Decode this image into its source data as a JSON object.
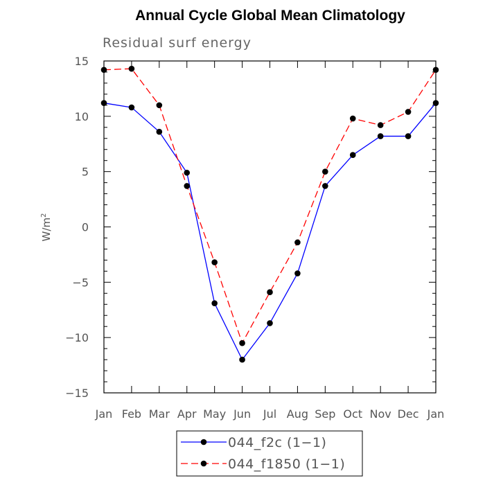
{
  "chart_data": {
    "type": "line",
    "title": "Annual Cycle Global Mean Climatology",
    "subtitle": "Residual surf energy",
    "ylabel_base": "W/m",
    "ylabel_sup": "2",
    "xlabel": "",
    "ylim": [
      -15,
      15
    ],
    "yticks": [
      15,
      10,
      5,
      0,
      -5,
      -10,
      -15
    ],
    "ytick_labels": [
      "15",
      "10",
      "5",
      "0",
      "−5",
      "−10",
      "−15"
    ],
    "categories": [
      "Jan",
      "Feb",
      "Mar",
      "Apr",
      "May",
      "Jun",
      "Jul",
      "Aug",
      "Sep",
      "Oct",
      "Nov",
      "Dec",
      "Jan"
    ],
    "series": [
      {
        "name": "044_f2c (1−1)",
        "color": "#0000ff",
        "dash": "solid",
        "values": [
          11.2,
          10.8,
          8.6,
          4.9,
          -6.9,
          -12.0,
          -8.7,
          -4.2,
          3.7,
          6.5,
          8.2,
          8.2,
          11.2
        ]
      },
      {
        "name": "044_f1850 (1−1)",
        "color": "#ff0000",
        "dash": "dashed",
        "values": [
          14.2,
          14.3,
          11.0,
          3.7,
          -3.2,
          -10.5,
          -5.9,
          -1.4,
          5.0,
          9.8,
          9.2,
          10.4,
          14.2
        ]
      }
    ],
    "legend_position": "bottom-center"
  }
}
